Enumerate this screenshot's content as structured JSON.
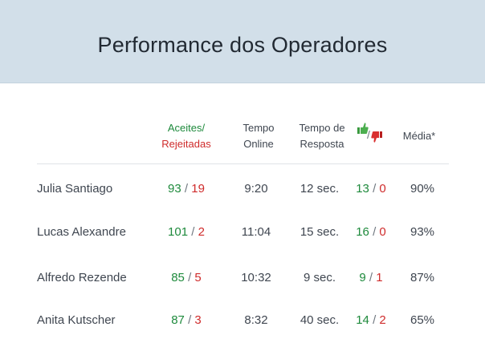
{
  "title": "Performance dos Operadores",
  "headers": {
    "accepted": "Aceites/",
    "rejected": "Rejeitadas",
    "time_line1": "Tempo",
    "time_line2": "Online",
    "response_line1": "Tempo de",
    "response_line2": "Resposta",
    "feedback_separator": "/",
    "average": "Média*"
  },
  "colors": {
    "positive": "#1e8a3c",
    "negative": "#cf2b2b",
    "header_bg": "#d2dfe9"
  },
  "icons": {
    "feedback_up": "thumbs-up-icon",
    "feedback_down": "thumbs-down-icon"
  },
  "slash": "/",
  "rows": [
    {
      "name": "Julia Santiago",
      "accepted": "93",
      "rejected": "19",
      "time_online": "9:20",
      "response": "12 sec.",
      "likes": "13",
      "dislikes": "0",
      "average": "90%"
    },
    {
      "name": "Lucas Alexandre",
      "accepted": "101",
      "rejected": "2",
      "time_online": "11:04",
      "response": "15 sec.",
      "likes": "16",
      "dislikes": "0",
      "average": "93%"
    },
    {
      "name": "Alfredo Rezende",
      "accepted": "85",
      "rejected": "5",
      "time_online": "10:32",
      "response": "9 sec.",
      "likes": "9",
      "dislikes": "1",
      "average": "87%"
    },
    {
      "name": "Anita Kutscher",
      "accepted": "87",
      "rejected": "3",
      "time_online": "8:32",
      "response": "40 sec.",
      "likes": "14",
      "dislikes": "2",
      "average": "65%"
    }
  ]
}
